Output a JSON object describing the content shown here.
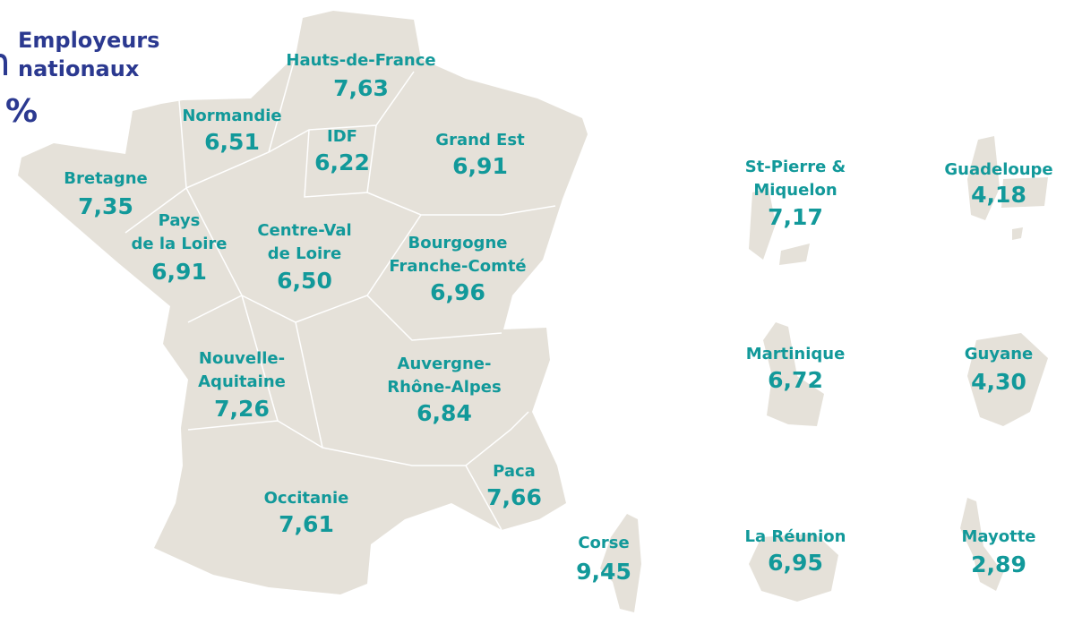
{
  "header": {
    "title": [
      "Employeurs",
      "nationaux"
    ],
    "unit": "%"
  },
  "regions": [
    {
      "name": [
        "Hauts-de-France"
      ],
      "value": "7,63"
    },
    {
      "name": [
        "Normandie"
      ],
      "value": "6,51"
    },
    {
      "name": [
        "IDF"
      ],
      "value": "6,22"
    },
    {
      "name": [
        "Grand Est"
      ],
      "value": "6,91"
    },
    {
      "name": [
        "Bretagne"
      ],
      "value": "7,35"
    },
    {
      "name": [
        "Pays",
        "de la Loire"
      ],
      "value": "6,91"
    },
    {
      "name": [
        "Centre-Val",
        "de Loire"
      ],
      "value": "6,50"
    },
    {
      "name": [
        "Bourgogne",
        "Franche-Comté"
      ],
      "value": "6,96"
    },
    {
      "name": [
        "Nouvelle-",
        "Aquitaine"
      ],
      "value": "7,26"
    },
    {
      "name": [
        "Auvergne-",
        "Rhône-Alpes"
      ],
      "value": "6,84"
    },
    {
      "name": [
        "Paca"
      ],
      "value": "7,66"
    },
    {
      "name": [
        "Occitanie"
      ],
      "value": "7,61"
    },
    {
      "name": [
        "Corse"
      ],
      "value": "9,45"
    },
    {
      "name": [
        "St-Pierre &",
        "Miquelon"
      ],
      "value": "7,17"
    },
    {
      "name": [
        "Guadeloupe"
      ],
      "value": "4,18"
    },
    {
      "name": [
        "Martinique"
      ],
      "value": "6,72"
    },
    {
      "name": [
        "Guyane"
      ],
      "value": "4,30"
    },
    {
      "name": [
        "La Réunion"
      ],
      "value": "6,95"
    },
    {
      "name": [
        "Mayotte"
      ],
      "value": "2,89"
    }
  ]
}
